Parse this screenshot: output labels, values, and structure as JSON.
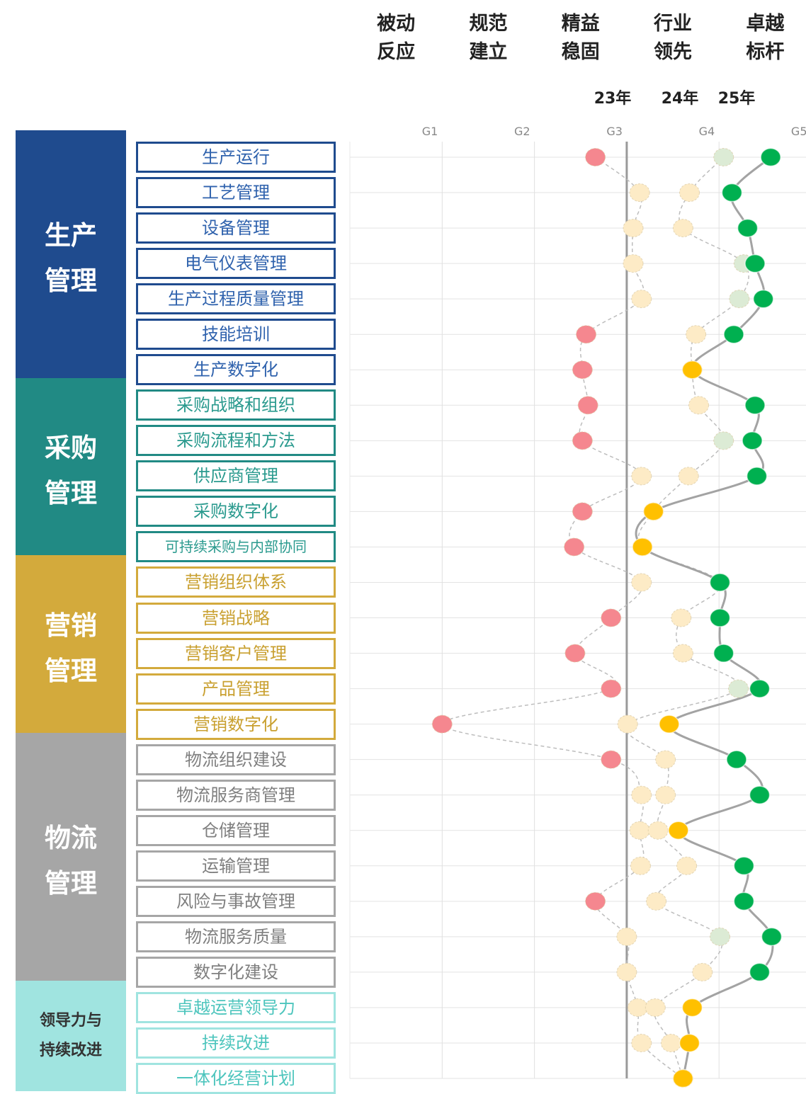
{
  "chart_data": {
    "type": "dot",
    "levels": [
      "被动反应",
      "规范建立",
      "精益稳固",
      "行业领先",
      "卓越标杆"
    ],
    "xlim": [
      0,
      5
    ],
    "xticks": [
      {
        "value": 1,
        "label": "G1"
      },
      {
        "value": 2,
        "label": "G2"
      },
      {
        "value": 3,
        "label": "G3"
      },
      {
        "value": 4,
        "label": "G4"
      },
      {
        "value": 5,
        "label": "G5"
      }
    ],
    "reference_line": 3,
    "grid": true,
    "groups": [
      {
        "name": "生产管理",
        "color": "#1f4b8e",
        "label_color": "#2f62ad",
        "items": [
          "生产运行",
          "工艺管理",
          "设备管理",
          "电气仪表管理",
          "生产过程质量管理",
          "技能培训",
          "生产数字化"
        ]
      },
      {
        "name": "采购管理",
        "color": "#218a84",
        "label_color": "#2a9a8e",
        "items": [
          "采购战略和组织",
          "采购流程和方法",
          "供应商管理",
          "采购数字化",
          "可持续采购与内部协同"
        ]
      },
      {
        "name": "营销管理",
        "color": "#d3aa3c",
        "label_color": "#c9a030",
        "items": [
          "营销组织体系",
          "营销战略",
          "营销客户管理",
          "产品管理",
          "营销数字化"
        ]
      },
      {
        "name": "物流管理",
        "color": "#a6a6a6",
        "label_color": "#7f7f7f",
        "items": [
          "物流组织建设",
          "物流服务商管理",
          "仓储管理",
          "运输管理",
          "风险与事故管理",
          "物流服务质量",
          "数字化建设"
        ]
      },
      {
        "name": "领导力与持续改进",
        "color": "#a0e4e0",
        "label_color": "#4dc5bd",
        "items": [
          "卓越运营领导力",
          "持续改进",
          "一体化经营计划"
        ]
      }
    ],
    "series": [
      {
        "name": "23年",
        "colors": [
          "#f5878f",
          "#fdebc6",
          "#dcebd5"
        ],
        "line": "dashed",
        "values": [
          2.66,
          3.14,
          3.07,
          3.07,
          3.16,
          2.56,
          2.52,
          2.58,
          2.52,
          3.16,
          2.52,
          2.43,
          3.16,
          2.83,
          2.44,
          2.83,
          1.0,
          2.83,
          3.16,
          3.14,
          3.15,
          2.66,
          3.0,
          3.0,
          3.12,
          3.16,
          3.61
        ]
      },
      {
        "name": "24年",
        "colors": [
          "#f5878f",
          "#fdebc6",
          "#dcebd5"
        ],
        "line": "dashed",
        "values": [
          4.05,
          3.68,
          3.61,
          4.27,
          4.22,
          3.75,
          3.71,
          3.78,
          4.05,
          3.67,
          3.29,
          3.17,
          4.01,
          3.59,
          3.61,
          4.21,
          3.01,
          3.42,
          3.42,
          3.34,
          3.65,
          3.32,
          4.01,
          3.82,
          3.31,
          3.48,
          3.61
        ]
      },
      {
        "name": "25年",
        "colors": [
          "#f5878f",
          "#ffc000",
          "#00b050"
        ],
        "line": "solid",
        "values": [
          4.56,
          4.14,
          4.31,
          4.39,
          4.48,
          4.16,
          3.71,
          4.39,
          4.36,
          4.41,
          3.29,
          3.17,
          4.01,
          4.01,
          4.05,
          4.44,
          3.46,
          4.19,
          4.44,
          3.56,
          4.27,
          4.27,
          4.57,
          4.44,
          3.71,
          3.68,
          3.61
        ]
      }
    ]
  }
}
